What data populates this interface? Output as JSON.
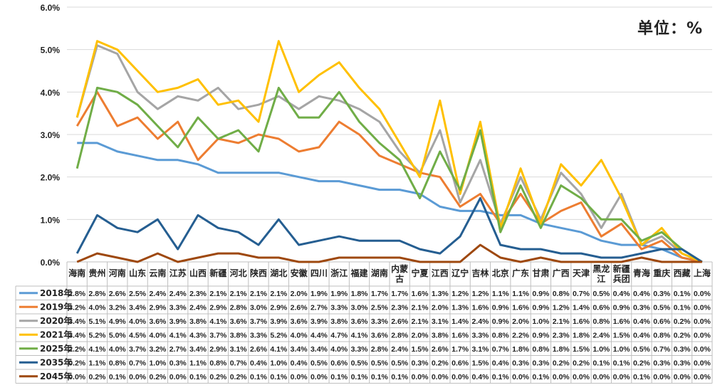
{
  "unit_label": "单位：%",
  "chart_data": {
    "type": "line",
    "title": "",
    "xlabel": "",
    "ylabel": "",
    "ylim": [
      0,
      6
    ],
    "yticks": [
      "0.0%",
      "1.0%",
      "2.0%",
      "3.0%",
      "4.0%",
      "5.0%",
      "6.0%"
    ],
    "grid": true,
    "legend": "data-table-left",
    "categories": [
      "海南",
      "贵州",
      "河南",
      "山东",
      "云南",
      "江苏",
      "山西",
      "新疆",
      "河北",
      "陕西",
      "湖北",
      "安徽",
      "四川",
      "浙江",
      "福建",
      "湖南",
      "内蒙古",
      "宁夏",
      "江西",
      "辽宁",
      "吉林",
      "北京",
      "广东",
      "甘肃",
      "广西",
      "天津",
      "黑龙江",
      "新疆兵团",
      "青海",
      "重庆",
      "西藏",
      "上海"
    ],
    "series": [
      {
        "name": "2018年",
        "color": "#5B9BD5",
        "values": [
          2.8,
          2.8,
          2.6,
          2.5,
          2.4,
          2.4,
          2.3,
          2.1,
          2.1,
          2.1,
          2.1,
          2.0,
          1.9,
          1.9,
          1.8,
          1.7,
          1.7,
          1.6,
          1.3,
          1.2,
          1.2,
          1.1,
          1.1,
          0.9,
          0.8,
          0.7,
          0.5,
          0.4,
          0.4,
          0.3,
          0.1,
          0.0
        ]
      },
      {
        "name": "2019年",
        "color": "#ED7D31",
        "values": [
          3.2,
          4.0,
          3.2,
          3.4,
          2.9,
          3.3,
          2.4,
          2.9,
          2.8,
          3.0,
          2.9,
          2.6,
          2.7,
          3.3,
          3.0,
          2.5,
          2.3,
          2.1,
          2.0,
          1.3,
          1.6,
          0.9,
          1.6,
          0.9,
          1.2,
          1.4,
          0.6,
          0.9,
          0.3,
          0.5,
          0.1,
          0.0
        ]
      },
      {
        "name": "2020年",
        "color": "#A5A5A5",
        "values": [
          3.4,
          5.1,
          4.9,
          4.0,
          3.6,
          3.9,
          3.8,
          4.1,
          3.6,
          3.7,
          3.9,
          3.6,
          3.9,
          3.8,
          3.6,
          3.3,
          2.6,
          2.1,
          3.1,
          1.4,
          2.4,
          0.9,
          2.0,
          1.0,
          2.1,
          1.6,
          0.8,
          1.6,
          0.4,
          0.6,
          0.2,
          0.0
        ]
      },
      {
        "name": "2021年",
        "color": "#FFC000",
        "values": [
          3.4,
          5.2,
          5.0,
          4.5,
          4.0,
          4.1,
          4.3,
          3.7,
          3.8,
          3.3,
          5.2,
          4.0,
          4.4,
          4.7,
          4.1,
          3.6,
          2.8,
          2.0,
          3.8,
          1.6,
          3.3,
          0.8,
          2.2,
          0.9,
          2.3,
          1.8,
          2.4,
          1.5,
          0.4,
          0.8,
          0.2,
          0.0
        ]
      },
      {
        "name": "2025年",
        "color": "#70AD47",
        "values": [
          2.2,
          4.1,
          4.0,
          3.7,
          3.2,
          2.7,
          3.4,
          2.9,
          3.1,
          2.6,
          4.1,
          3.4,
          3.4,
          4.0,
          3.3,
          2.8,
          2.4,
          1.5,
          2.6,
          1.7,
          3.1,
          0.7,
          1.8,
          0.8,
          1.8,
          1.5,
          1.0,
          1.0,
          0.5,
          0.7,
          0.3,
          0.0
        ]
      },
      {
        "name": "2035年",
        "color": "#255E91",
        "values": [
          0.2,
          1.1,
          0.8,
          0.7,
          1.0,
          0.3,
          1.1,
          0.8,
          0.7,
          0.4,
          1.0,
          0.4,
          0.5,
          0.6,
          0.5,
          0.5,
          0.5,
          0.3,
          0.2,
          0.6,
          1.5,
          0.4,
          0.3,
          0.3,
          0.2,
          0.2,
          0.1,
          0.1,
          0.2,
          0.3,
          0.3,
          0.0
        ]
      },
      {
        "name": "2045年",
        "color": "#9E480E",
        "values": [
          0.0,
          0.2,
          0.1,
          0.0,
          0.2,
          0.0,
          0.1,
          0.2,
          0.2,
          0.1,
          0.1,
          0.0,
          0.0,
          0.1,
          0.1,
          0.1,
          0.1,
          0.0,
          0.0,
          0.0,
          0.4,
          0.1,
          0.0,
          0.1,
          0.0,
          0.0,
          0.0,
          0.0,
          0.1,
          0.0,
          0.0,
          0.0
        ]
      }
    ],
    "table_values": [
      [
        "2.8%",
        "2.8%",
        "2.6%",
        "2.5%",
        "2.4%",
        "2.4%",
        "2.3%",
        "2.1%",
        "2.1%",
        "2.1%",
        "2.1%",
        "2.0%",
        "1.9%",
        "1.9%",
        "1.8%",
        "1.7%",
        "1.7%",
        "1.6%",
        "1.3%",
        "1.2%",
        "1.2%",
        "1.1%",
        "1.1%",
        "0.9%",
        "0.8%",
        "0.7%",
        "0.5%",
        "0.4%",
        "0.4%",
        "0.3%",
        "0.1%",
        "0.0%"
      ],
      [
        "3.2%",
        "4.0%",
        "3.2%",
        "3.4%",
        "2.9%",
        "3.3%",
        "2.4%",
        "2.9%",
        "2.8%",
        "3.0%",
        "2.9%",
        "2.6%",
        "2.7%",
        "3.3%",
        "3.0%",
        "2.5%",
        "2.3%",
        "2.1%",
        "2.0%",
        "1.3%",
        "1.6%",
        "0.9%",
        "1.6%",
        "0.9%",
        "1.2%",
        "1.4%",
        "0.6%",
        "0.9%",
        "0.3%",
        "0.5%",
        "0.1%",
        "0.0%"
      ],
      [
        "3.4%",
        "5.1%",
        "4.9%",
        "4.0%",
        "3.6%",
        "3.9%",
        "3.8%",
        "4.1%",
        "3.6%",
        "3.7%",
        "3.9%",
        "3.6%",
        "3.9%",
        "3.8%",
        "3.6%",
        "3.3%",
        "2.6%",
        "2.1%",
        "3.1%",
        "1.4%",
        "2.4%",
        "0.9%",
        "2.0%",
        "1.0%",
        "2.1%",
        "1.6%",
        "0.8%",
        "1.6%",
        "0.4%",
        "0.6%",
        "0.2%",
        "0.0%"
      ],
      [
        "3.4%",
        "5.2%",
        "5.0%",
        "4.5%",
        "4.0%",
        "4.1%",
        "4.3%",
        "3.7%",
        "3.8%",
        "3.3%",
        "5.2%",
        "4.0%",
        "4.4%",
        "4.7%",
        "4.1%",
        "3.6%",
        "2.8%",
        "2.0%",
        "3.8%",
        "1.6%",
        "3.3%",
        "0.8%",
        "2.2%",
        "0.9%",
        "2.3%",
        "1.8%",
        "2.4%",
        "1.5%",
        "0.4%",
        "0.8%",
        "0.2%",
        "0.0%"
      ],
      [
        "2.2%",
        "4.1%",
        "4.0%",
        "3.7%",
        "3.2%",
        "2.7%",
        "3.4%",
        "2.9%",
        "3.1%",
        "2.6%",
        "4.1%",
        "3.4%",
        "3.4%",
        "4.0%",
        "3.3%",
        "2.8%",
        "2.4%",
        "1.5%",
        "2.6%",
        "1.7%",
        "3.1%",
        "0.7%",
        "1.8%",
        "0.8%",
        "1.8%",
        "1.5%",
        "1.0%",
        "1.0%",
        "0.5%",
        "0.7%",
        "0.3%",
        "0.0%"
      ],
      [
        "0.2%",
        "1.1%",
        "0.8%",
        "0.7%",
        "1.0%",
        "0.3%",
        "1.1%",
        "0.8%",
        "0.7%",
        "0.4%",
        "1.0%",
        "0.4%",
        "0.5%",
        "0.6%",
        "0.5%",
        "0.5%",
        "0.5%",
        "0.3%",
        "0.2%",
        "0.6%",
        "1.5%",
        "0.4%",
        "0.3%",
        "0.3%",
        "0.2%",
        "0.2%",
        "0.1%",
        "0.1%",
        "0.2%",
        "0.3%",
        "0.3%",
        "0.0%"
      ],
      [
        "0.0%",
        "0.2%",
        "0.1%",
        "0.0%",
        "0.2%",
        "0.0%",
        "0.1%",
        "0.2%",
        "0.2%",
        "0.1%",
        "0.1%",
        "0.0%",
        "0.0%",
        "0.1%",
        "0.1%",
        "0.1%",
        "0.1%",
        "0.0%",
        "0.0%",
        "0.0%",
        "0.4%",
        "0.1%",
        "0.0%",
        "0.1%",
        "0.0%",
        "0.0%",
        "0.0%",
        "0.0%",
        "0.1%",
        "0.0%",
        "0.0%",
        "0.0%"
      ]
    ]
  }
}
